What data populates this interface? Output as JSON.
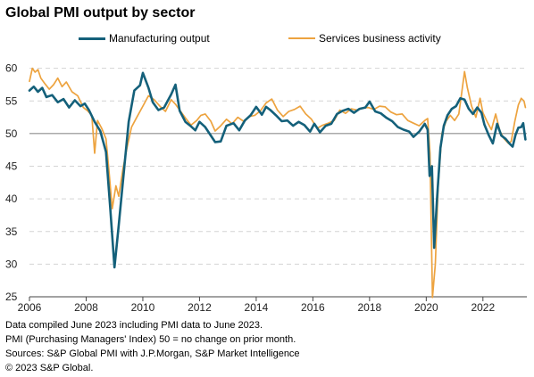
{
  "chart_data": {
    "type": "line",
    "title": "Global PMI output by sector",
    "xlim": [
      2006.0,
      2023.55
    ],
    "ylim": [
      25,
      62
    ],
    "x_ticks": [
      2006,
      2008,
      2010,
      2012,
      2014,
      2016,
      2018,
      2020,
      2022
    ],
    "y_ticks": [
      25,
      30,
      35,
      40,
      45,
      50,
      55,
      60
    ],
    "reference_line": 50,
    "grid": "horizontal dashed",
    "legend_position": "top",
    "series": [
      {
        "name": "Manufacturing output",
        "color": "#14607a",
        "points": [
          [
            2006.0,
            56.6
          ],
          [
            2006.15,
            57.2
          ],
          [
            2006.3,
            56.4
          ],
          [
            2006.45,
            57.0
          ],
          [
            2006.6,
            55.6
          ],
          [
            2006.8,
            55.9
          ],
          [
            2007.0,
            54.8
          ],
          [
            2007.2,
            55.3
          ],
          [
            2007.4,
            54.0
          ],
          [
            2007.6,
            55.1
          ],
          [
            2007.8,
            54.2
          ],
          [
            2007.95,
            54.6
          ],
          [
            2008.1,
            53.6
          ],
          [
            2008.3,
            51.8
          ],
          [
            2008.5,
            50.4
          ],
          [
            2008.7,
            47.2
          ],
          [
            2008.85,
            38.5
          ],
          [
            2009.0,
            29.5
          ],
          [
            2009.15,
            36.0
          ],
          [
            2009.35,
            45.0
          ],
          [
            2009.5,
            51.8
          ],
          [
            2009.7,
            56.6
          ],
          [
            2009.9,
            57.4
          ],
          [
            2010.0,
            59.3
          ],
          [
            2010.2,
            57.0
          ],
          [
            2010.35,
            54.8
          ],
          [
            2010.55,
            53.6
          ],
          [
            2010.75,
            54.0
          ],
          [
            2011.0,
            56.0
          ],
          [
            2011.15,
            57.5
          ],
          [
            2011.3,
            53.5
          ],
          [
            2011.5,
            51.8
          ],
          [
            2011.7,
            51.1
          ],
          [
            2011.85,
            50.5
          ],
          [
            2012.0,
            51.8
          ],
          [
            2012.2,
            51.0
          ],
          [
            2012.4,
            49.7
          ],
          [
            2012.55,
            48.7
          ],
          [
            2012.75,
            48.8
          ],
          [
            2012.95,
            51.2
          ],
          [
            2013.2,
            51.6
          ],
          [
            2013.4,
            50.5
          ],
          [
            2013.6,
            52.0
          ],
          [
            2013.8,
            52.8
          ],
          [
            2014.0,
            54.1
          ],
          [
            2014.2,
            52.9
          ],
          [
            2014.35,
            54.1
          ],
          [
            2014.5,
            53.6
          ],
          [
            2014.7,
            52.8
          ],
          [
            2014.9,
            51.9
          ],
          [
            2015.1,
            52.0
          ],
          [
            2015.3,
            51.2
          ],
          [
            2015.5,
            51.8
          ],
          [
            2015.7,
            51.3
          ],
          [
            2015.9,
            50.3
          ],
          [
            2016.05,
            51.5
          ],
          [
            2016.25,
            50.2
          ],
          [
            2016.45,
            51.2
          ],
          [
            2016.65,
            51.5
          ],
          [
            2016.85,
            53.0
          ],
          [
            2017.05,
            53.5
          ],
          [
            2017.25,
            53.8
          ],
          [
            2017.45,
            53.2
          ],
          [
            2017.65,
            53.8
          ],
          [
            2017.85,
            54.0
          ],
          [
            2018.0,
            54.9
          ],
          [
            2018.2,
            53.4
          ],
          [
            2018.4,
            53.1
          ],
          [
            2018.6,
            52.4
          ],
          [
            2018.8,
            51.9
          ],
          [
            2019.0,
            51.0
          ],
          [
            2019.2,
            50.6
          ],
          [
            2019.4,
            50.3
          ],
          [
            2019.55,
            49.5
          ],
          [
            2019.75,
            50.3
          ],
          [
            2019.95,
            51.5
          ],
          [
            2020.05,
            50.6
          ],
          [
            2020.12,
            43.5
          ],
          [
            2020.2,
            45.0
          ],
          [
            2020.28,
            32.5
          ],
          [
            2020.38,
            40.0
          ],
          [
            2020.5,
            47.8
          ],
          [
            2020.62,
            51.2
          ],
          [
            2020.75,
            52.8
          ],
          [
            2020.9,
            53.8
          ],
          [
            2021.05,
            54.2
          ],
          [
            2021.2,
            55.4
          ],
          [
            2021.35,
            55.2
          ],
          [
            2021.5,
            53.8
          ],
          [
            2021.65,
            53.0
          ],
          [
            2021.8,
            54.0
          ],
          [
            2021.95,
            53.2
          ],
          [
            2022.05,
            51.4
          ],
          [
            2022.2,
            49.8
          ],
          [
            2022.35,
            48.5
          ],
          [
            2022.5,
            51.5
          ],
          [
            2022.65,
            49.7
          ],
          [
            2022.8,
            49.2
          ],
          [
            2022.95,
            48.4
          ],
          [
            2023.05,
            48.0
          ],
          [
            2023.15,
            49.8
          ],
          [
            2023.25,
            50.9
          ],
          [
            2023.35,
            51.0
          ],
          [
            2023.42,
            51.6
          ],
          [
            2023.5,
            49.1
          ]
        ]
      },
      {
        "name": "Services business activity",
        "color": "#eda33f",
        "points": [
          [
            2006.0,
            58.0
          ],
          [
            2006.1,
            60.0
          ],
          [
            2006.2,
            59.4
          ],
          [
            2006.3,
            59.8
          ],
          [
            2006.4,
            58.5
          ],
          [
            2006.55,
            57.6
          ],
          [
            2006.7,
            56.8
          ],
          [
            2006.85,
            57.5
          ],
          [
            2007.0,
            58.5
          ],
          [
            2007.15,
            57.2
          ],
          [
            2007.3,
            57.9
          ],
          [
            2007.5,
            56.4
          ],
          [
            2007.7,
            55.8
          ],
          [
            2007.9,
            54.0
          ],
          [
            2008.05,
            53.5
          ],
          [
            2008.2,
            52.8
          ],
          [
            2008.3,
            47.0
          ],
          [
            2008.4,
            52.0
          ],
          [
            2008.55,
            50.8
          ],
          [
            2008.7,
            49.2
          ],
          [
            2008.8,
            44.5
          ],
          [
            2008.92,
            38.5
          ],
          [
            2009.05,
            42.0
          ],
          [
            2009.15,
            40.4
          ],
          [
            2009.3,
            44.6
          ],
          [
            2009.45,
            48.0
          ],
          [
            2009.6,
            51.0
          ],
          [
            2009.8,
            52.6
          ],
          [
            2010.0,
            54.2
          ],
          [
            2010.2,
            55.8
          ],
          [
            2010.4,
            55.2
          ],
          [
            2010.6,
            54.2
          ],
          [
            2010.8,
            53.4
          ],
          [
            2011.0,
            55.2
          ],
          [
            2011.15,
            54.5
          ],
          [
            2011.3,
            53.6
          ],
          [
            2011.5,
            52.4
          ],
          [
            2011.7,
            51.3
          ],
          [
            2011.9,
            52.0
          ],
          [
            2012.05,
            52.8
          ],
          [
            2012.2,
            53.0
          ],
          [
            2012.4,
            51.9
          ],
          [
            2012.55,
            50.4
          ],
          [
            2012.75,
            51.2
          ],
          [
            2012.95,
            52.2
          ],
          [
            2013.15,
            51.5
          ],
          [
            2013.35,
            52.5
          ],
          [
            2013.55,
            51.9
          ],
          [
            2013.75,
            52.6
          ],
          [
            2013.95,
            52.8
          ],
          [
            2014.15,
            53.5
          ],
          [
            2014.35,
            54.7
          ],
          [
            2014.55,
            55.3
          ],
          [
            2014.75,
            53.6
          ],
          [
            2014.95,
            52.6
          ],
          [
            2015.15,
            53.4
          ],
          [
            2015.35,
            53.7
          ],
          [
            2015.55,
            54.2
          ],
          [
            2015.75,
            53.0
          ],
          [
            2015.95,
            52.2
          ],
          [
            2016.15,
            50.8
          ],
          [
            2016.35,
            51.3
          ],
          [
            2016.55,
            51.6
          ],
          [
            2016.75,
            52.0
          ],
          [
            2016.95,
            53.6
          ],
          [
            2017.15,
            53.1
          ],
          [
            2017.35,
            53.8
          ],
          [
            2017.55,
            53.6
          ],
          [
            2017.75,
            53.9
          ],
          [
            2017.95,
            54.0
          ],
          [
            2018.15,
            53.7
          ],
          [
            2018.35,
            54.2
          ],
          [
            2018.55,
            54.1
          ],
          [
            2018.75,
            53.3
          ],
          [
            2018.95,
            52.9
          ],
          [
            2019.15,
            53.0
          ],
          [
            2019.35,
            52.0
          ],
          [
            2019.55,
            51.6
          ],
          [
            2019.75,
            51.2
          ],
          [
            2019.95,
            52.0
          ],
          [
            2020.05,
            52.3
          ],
          [
            2020.13,
            47.0
          ],
          [
            2020.22,
            24.9
          ],
          [
            2020.32,
            30.0
          ],
          [
            2020.42,
            42.0
          ],
          [
            2020.55,
            50.0
          ],
          [
            2020.7,
            51.9
          ],
          [
            2020.85,
            52.8
          ],
          [
            2021.0,
            52.0
          ],
          [
            2021.15,
            53.0
          ],
          [
            2021.25,
            56.2
          ],
          [
            2021.35,
            59.5
          ],
          [
            2021.45,
            57.0
          ],
          [
            2021.6,
            54.2
          ],
          [
            2021.75,
            52.5
          ],
          [
            2021.9,
            55.4
          ],
          [
            2022.0,
            53.2
          ],
          [
            2022.15,
            51.8
          ],
          [
            2022.3,
            50.6
          ],
          [
            2022.45,
            53.0
          ],
          [
            2022.6,
            50.4
          ],
          [
            2022.75,
            49.2
          ],
          [
            2022.9,
            48.5
          ],
          [
            2023.0,
            48.8
          ],
          [
            2023.12,
            51.8
          ],
          [
            2023.25,
            54.4
          ],
          [
            2023.35,
            55.4
          ],
          [
            2023.45,
            55.0
          ],
          [
            2023.5,
            54.0
          ]
        ]
      }
    ]
  },
  "notes": [
    "Data compiled June 2023 including PMI data to June 2023.",
    "PMI (Purchasing Managers' Index) 50 = no change on prior month.",
    "Sources: S&P Global PMI with J.P.Morgan, S&P Market Intelligence",
    "© 2023 S&P Global."
  ]
}
